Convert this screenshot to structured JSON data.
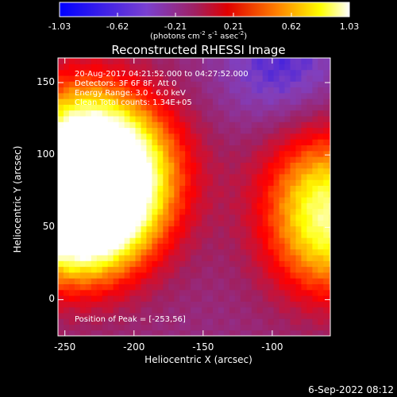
{
  "colorbar": {
    "tick_labels": [
      "-1.03",
      "-0.62",
      "-0.21",
      "0.21",
      "0.62",
      "1.03"
    ],
    "units_parts": [
      "(photons cm",
      "-2",
      " s",
      "-1",
      " asec",
      "-2",
      ")"
    ]
  },
  "plot": {
    "title": "Reconstructed RHESSI Image",
    "info_lines": [
      "20-Aug-2017 04:21:52.000 to 04:27:52.000",
      "Detectors: 3F 6F 8F, Att 0",
      "Energy Range: 3.0 - 6.0 keV",
      "Clean      Total counts: 1.34E+05"
    ],
    "peak_text": "Position of Peak = [-253,56]",
    "xlabel": "Heliocentric X (arcsec)",
    "ylabel": "Heliocentric Y (arcsec)"
  },
  "chart_data": {
    "type": "heatmap",
    "xlim": [
      -255,
      -58
    ],
    "ylim": [
      -25,
      167
    ],
    "x_ticks": [
      -250,
      -200,
      -150,
      -100
    ],
    "y_ticks": [
      0,
      50,
      100,
      150
    ],
    "x_tick_labels": [
      "-250",
      "-200",
      "-150",
      "-100"
    ],
    "y_tick_labels": [
      "0",
      "50",
      "100",
      "150"
    ],
    "color_range": [
      -1.03,
      1.03
    ],
    "colormap": [
      "#0000ff",
      "#8040c0",
      "#a02060",
      "#ff0000",
      "#ff8000",
      "#ffff00",
      "#ffffff"
    ],
    "peak": [
      -253,
      56
    ],
    "sources": [
      {
        "x": -253,
        "y": 56,
        "value": 1.03
      },
      {
        "x": -240,
        "y": 110,
        "value": 0.8
      },
      {
        "x": -225,
        "y": 60,
        "value": 0.7
      },
      {
        "x": -205,
        "y": 90,
        "value": 0.4
      },
      {
        "x": -60,
        "y": 40,
        "value": 0.55
      },
      {
        "x": -65,
        "y": 80,
        "value": 0.35
      },
      {
        "x": -95,
        "y": 160,
        "value": -0.85
      }
    ]
  },
  "footer": {
    "date": "6-Sep-2022 08:12"
  }
}
